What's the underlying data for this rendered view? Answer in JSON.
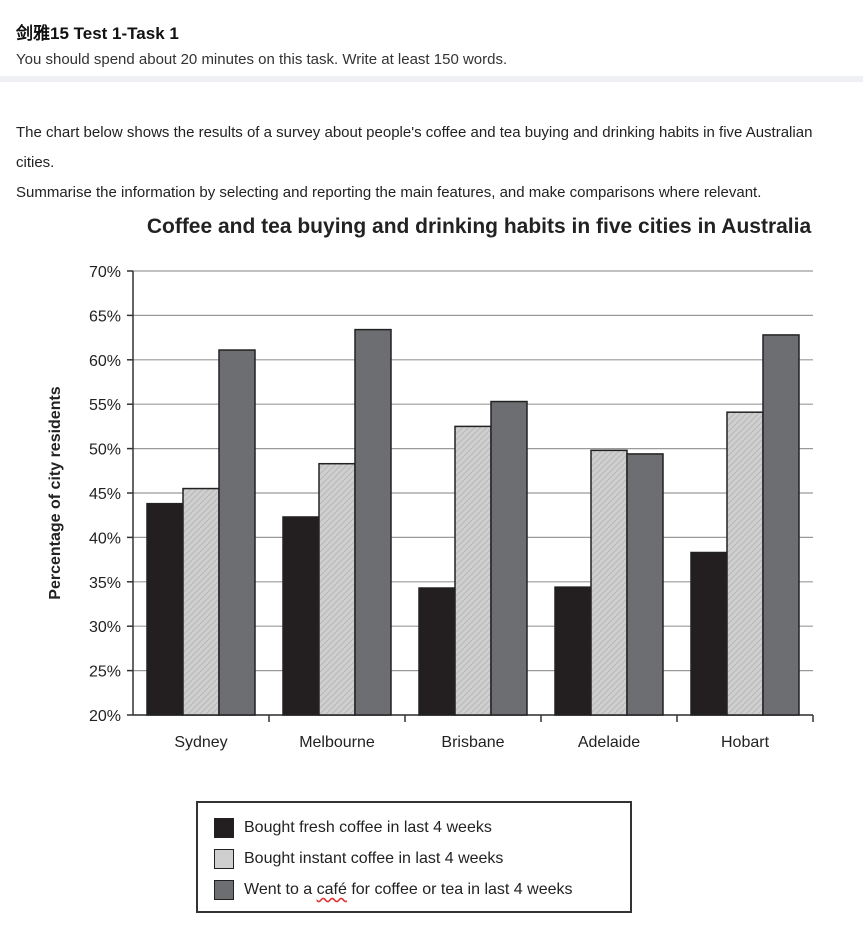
{
  "header": {
    "title": "剑雅15  Test 1-Task 1",
    "instructions": "You should spend about 20 minutes on this task. Write at least 150 words."
  },
  "prompt": {
    "line1": "The chart below shows the results of a survey about people's coffee and tea buying and drinking habits in five Australian cities.",
    "line2": "Summarise the information by selecting and reporting the main features, and make comparisons where relevant."
  },
  "colors": {
    "fresh": "#231f20",
    "instant": "#cfcfcf",
    "cafe": "#6d6e71",
    "grid": "#9a9a9a"
  },
  "chart_data": {
    "type": "bar",
    "title": "Coffee and tea buying and drinking habits in five cities in Australia",
    "xlabel": "",
    "ylabel": "Percentage of city residents",
    "ylim": [
      20,
      70
    ],
    "yticks": [
      "20%",
      "25%",
      "30%",
      "35%",
      "40%",
      "45%",
      "50%",
      "55%",
      "60%",
      "65%",
      "70%"
    ],
    "categories": [
      "Sydney",
      "Melbourne",
      "Brisbane",
      "Adelaide",
      "Hobart"
    ],
    "series": [
      {
        "name": "Bought fresh coffee in last 4 weeks",
        "values": [
          43.8,
          42.3,
          34.3,
          34.4,
          38.3
        ]
      },
      {
        "name": "Bought instant coffee in last 4 weeks",
        "values": [
          45.5,
          48.3,
          52.5,
          49.8,
          54.1
        ]
      },
      {
        "name": "Went to a café for coffee or tea in last 4 weeks",
        "values": [
          61.1,
          63.4,
          55.3,
          49.4,
          62.8
        ]
      }
    ],
    "grid": true,
    "legend_position": "bottom"
  },
  "legend": {
    "items": [
      "Bought fresh coffee in last 4 weeks",
      "Bought instant coffee in last 4 weeks",
      {
        "prefix": "Went to a ",
        "cafe": "café",
        "suffix": " for coffee or tea in last 4 weeks"
      }
    ]
  }
}
